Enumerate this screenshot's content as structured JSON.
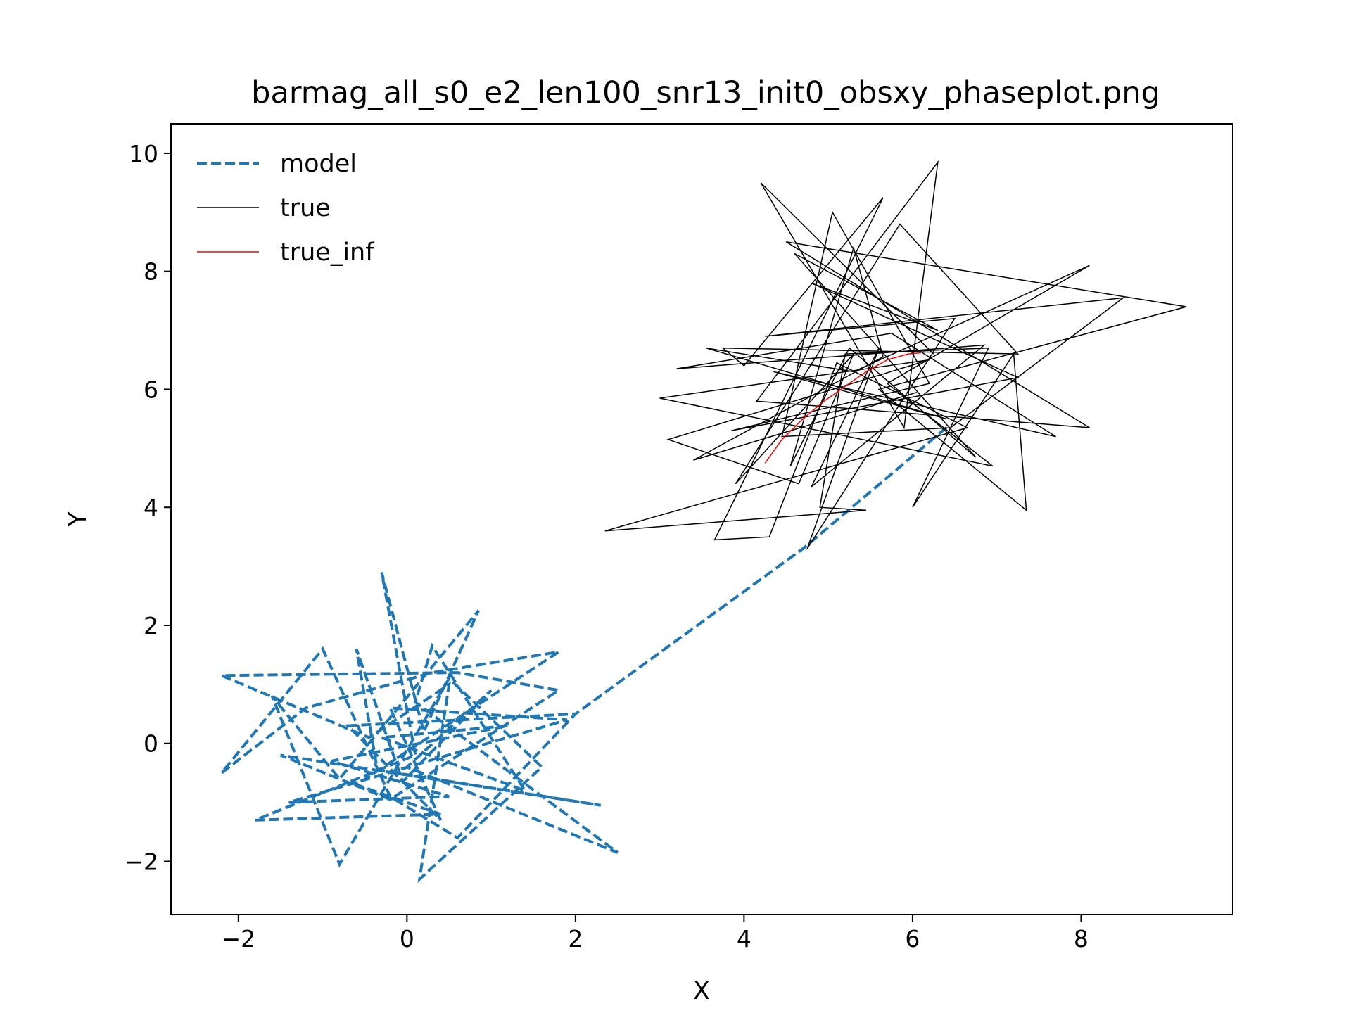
{
  "chart_data": {
    "type": "line",
    "title": "barmag_all_s0_e2_len100_snr13_init0_obsxy_phaseplot.png",
    "xlabel": "X",
    "ylabel": "Y",
    "xlim": [
      -2.8,
      9.8
    ],
    "ylim": [
      -2.9,
      10.5
    ],
    "xticks": [
      -2,
      0,
      2,
      4,
      6,
      8
    ],
    "yticks": [
      -2,
      0,
      2,
      4,
      6,
      8,
      10
    ],
    "xtick_labels": [
      "−2",
      "0",
      "2",
      "4",
      "6",
      "8"
    ],
    "ytick_labels": [
      "−2",
      "0",
      "2",
      "4",
      "6",
      "8",
      "10"
    ],
    "grid": false,
    "legend": {
      "position": "top-left",
      "frame": false
    },
    "series": [
      {
        "name": "model",
        "color": "#1f77b4",
        "style": "dashed",
        "points": [
          [
            6.4,
            5.35
          ],
          [
            4.7,
            3.3
          ],
          [
            2.0,
            0.5
          ],
          [
            0.6,
            -1.6
          ],
          [
            -0.2,
            -0.9
          ],
          [
            -1.0,
            1.6
          ],
          [
            -2.2,
            -0.5
          ],
          [
            -1.2,
            0.6
          ],
          [
            0.3,
            1.2
          ],
          [
            1.8,
            1.55
          ],
          [
            -0.6,
            -0.7
          ],
          [
            0.4,
            -1.2
          ],
          [
            -1.8,
            -1.3
          ],
          [
            0.1,
            -0.2
          ],
          [
            -0.3,
            2.9
          ],
          [
            0.2,
            0.2
          ],
          [
            0.85,
            2.25
          ],
          [
            -0.8,
            -0.6
          ],
          [
            -1.6,
            0.8
          ],
          [
            -0.8,
            -2.05
          ],
          [
            0.5,
            1.1
          ],
          [
            1.6,
            -0.4
          ],
          [
            0.15,
            -2.3
          ],
          [
            0.5,
            1.0
          ],
          [
            -0.45,
            0.1
          ],
          [
            -2.2,
            1.15
          ],
          [
            0.6,
            1.2
          ],
          [
            1.8,
            0.9
          ],
          [
            -0.2,
            -0.95
          ],
          [
            -1.5,
            -0.2
          ],
          [
            2.3,
            -1.05
          ],
          [
            -0.35,
            -0.45
          ],
          [
            -0.6,
            1.6
          ],
          [
            -0.05,
            -0.65
          ],
          [
            1.0,
            0.9
          ],
          [
            0.0,
            -0.4
          ],
          [
            2.5,
            -1.85
          ],
          [
            0.1,
            0.7
          ],
          [
            0.3,
            1.65
          ],
          [
            1.4,
            -0.8
          ],
          [
            -0.3,
            0.1
          ],
          [
            1.2,
            0.3
          ],
          [
            -0.9,
            -0.3
          ],
          [
            0.5,
            -0.9
          ],
          [
            -1.4,
            -1.0
          ],
          [
            1.9,
            0.4
          ],
          [
            -0.2,
            0.6
          ],
          [
            0.4,
            -1.3
          ],
          [
            -0.7,
            0.3
          ],
          [
            2.0,
            0.5
          ]
        ]
      },
      {
        "name": "true",
        "color": "#000000",
        "style": "solid",
        "points": [
          [
            6.25,
            6.6
          ],
          [
            4.2,
            9.5
          ],
          [
            5.9,
            5.35
          ],
          [
            6.3,
            9.85
          ],
          [
            4.15,
            5.8
          ],
          [
            8.1,
            5.35
          ],
          [
            4.5,
            8.5
          ],
          [
            9.25,
            7.4
          ],
          [
            5.6,
            6.0
          ],
          [
            7.35,
            3.95
          ],
          [
            7.2,
            6.6
          ],
          [
            6.0,
            4.0
          ],
          [
            6.9,
            6.7
          ],
          [
            5.2,
            6.6
          ],
          [
            4.9,
            4.0
          ],
          [
            5.45,
            3.95
          ],
          [
            2.35,
            3.6
          ],
          [
            6.65,
            5.35
          ],
          [
            5.1,
            6.45
          ],
          [
            4.3,
            3.5
          ],
          [
            3.65,
            3.45
          ],
          [
            5.65,
            9.25
          ],
          [
            4.0,
            6.4
          ],
          [
            3.75,
            6.7
          ],
          [
            7.25,
            6.6
          ],
          [
            5.85,
            8.8
          ],
          [
            3.9,
            4.4
          ],
          [
            5.3,
            6.6
          ],
          [
            4.65,
            4.4
          ],
          [
            3.1,
            5.15
          ],
          [
            6.2,
            6.5
          ],
          [
            3.0,
            5.85
          ],
          [
            6.95,
            4.7
          ],
          [
            5.7,
            6.1
          ],
          [
            8.1,
            8.1
          ],
          [
            5.3,
            6.3
          ],
          [
            3.55,
            6.7
          ],
          [
            6.4,
            5.5
          ],
          [
            4.35,
            6.3
          ],
          [
            7.7,
            5.2
          ],
          [
            5.75,
            6.95
          ],
          [
            3.2,
            6.35
          ],
          [
            6.85,
            6.75
          ],
          [
            4.8,
            4.35
          ],
          [
            5.6,
            6.7
          ],
          [
            4.75,
            3.3
          ],
          [
            6.5,
            7.2
          ],
          [
            4.25,
            6.9
          ],
          [
            8.5,
            7.55
          ],
          [
            6.45,
            5.35
          ],
          [
            4.45,
            5.2
          ],
          [
            5.05,
            9.0
          ],
          [
            6.2,
            6.1
          ],
          [
            3.85,
            5.3
          ],
          [
            7.25,
            6.2
          ],
          [
            4.8,
            7.8
          ],
          [
            6.3,
            7.0
          ],
          [
            4.6,
            8.3
          ],
          [
            6.75,
            4.85
          ],
          [
            5.25,
            6.7
          ],
          [
            4.55,
            4.7
          ],
          [
            5.3,
            8.4
          ],
          [
            5.65,
            6.55
          ],
          [
            3.4,
            4.8
          ],
          [
            6.05,
            5.95
          ]
        ]
      },
      {
        "name": "true_inf",
        "color": "#ff0000",
        "style": "solid",
        "points": [
          [
            4.25,
            4.75
          ],
          [
            4.45,
            5.15
          ],
          [
            4.7,
            5.5
          ],
          [
            4.95,
            5.8
          ],
          [
            5.2,
            6.05
          ],
          [
            5.45,
            6.3
          ],
          [
            5.7,
            6.5
          ],
          [
            5.95,
            6.6
          ],
          [
            6.1,
            6.62
          ]
        ]
      }
    ]
  }
}
